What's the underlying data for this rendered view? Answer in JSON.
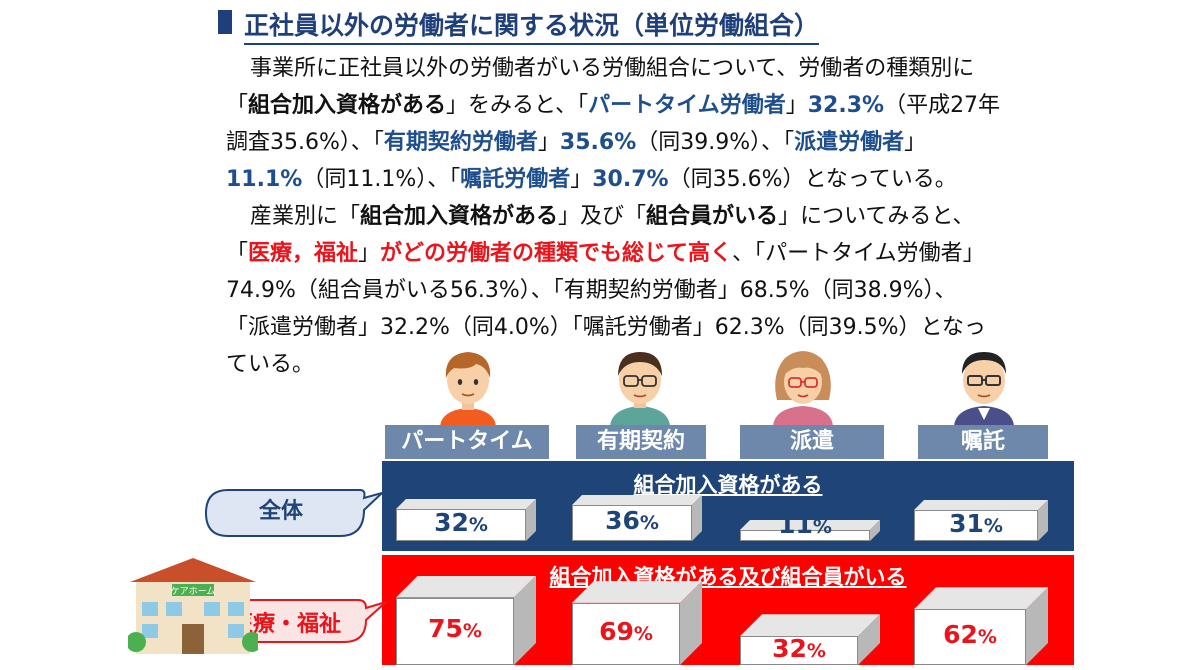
{
  "title": "正社員以外の労働者に関する状況（単位労働組合）",
  "paragraph1": {
    "l1": "事業所に正社員以外の労働者がいる労働組合について、労働者の種類別に",
    "l2_a": "「",
    "l2_b": "組合加入資格がある",
    "l2_c": "」をみると、「",
    "l2_d": "パートタイム労働者",
    "l2_e": "」",
    "l2_f": "32.3%",
    "l2_g": "（平成27年",
    "l3_a": "調査35.6%）、「",
    "l3_b": "有期契約労働者",
    "l3_c": "」",
    "l3_d": "35.6%",
    "l3_e": "（同39.9%）、「",
    "l3_f": "派遣労働者",
    "l3_g": "」",
    "l4_a": "11.1%",
    "l4_b": "（同11.1%）、「",
    "l4_c": "嘱託労働者",
    "l4_d": "」",
    "l4_e": "30.7%",
    "l4_f": "（同35.6%）となっている。"
  },
  "paragraph2": {
    "l1_a": "産業別に「",
    "l1_b": "組合加入資格がある",
    "l1_c": "」及び「",
    "l1_d": "組合員がいる",
    "l1_e": "」についてみると、",
    "l2_a": "「",
    "l2_b": "医療，福祉",
    "l2_c": "」",
    "l2_d": "がどの労働者の種類でも総じて高く",
    "l2_e": "、「パートタイム労働者」",
    "l3": "74.9%（組合員がいる56.3%）、「有期契約労働者」68.5%（同38.9%）、",
    "l4": "「派遣労働者」32.2%（同4.0%）「嘱託労働者」62.3%（同39.5%）となっ",
    "l5": "ている。"
  },
  "worker_types": [
    "パートタイム",
    "有期契約",
    "派遣",
    "嘱託"
  ],
  "infographic": {
    "overall_label": "全体",
    "overall_title": "組合加入資格がある",
    "overall_values": [
      32,
      36,
      11,
      31
    ],
    "overall_value_labels": [
      "32",
      "36",
      "11",
      "31"
    ],
    "health_label": "医療・福祉",
    "health_title": "組合加入資格がある及び組合員がいる",
    "health_values": [
      75,
      69,
      32,
      62
    ],
    "health_value_labels": [
      "75",
      "69",
      "32",
      "62"
    ],
    "percent_sign": "%",
    "building_sign": "ケアホーム"
  },
  "colors": {
    "navy": "#1f4477",
    "red": "#ff0000",
    "tab": "#6e88ab",
    "title": "#1f3f7a"
  }
}
